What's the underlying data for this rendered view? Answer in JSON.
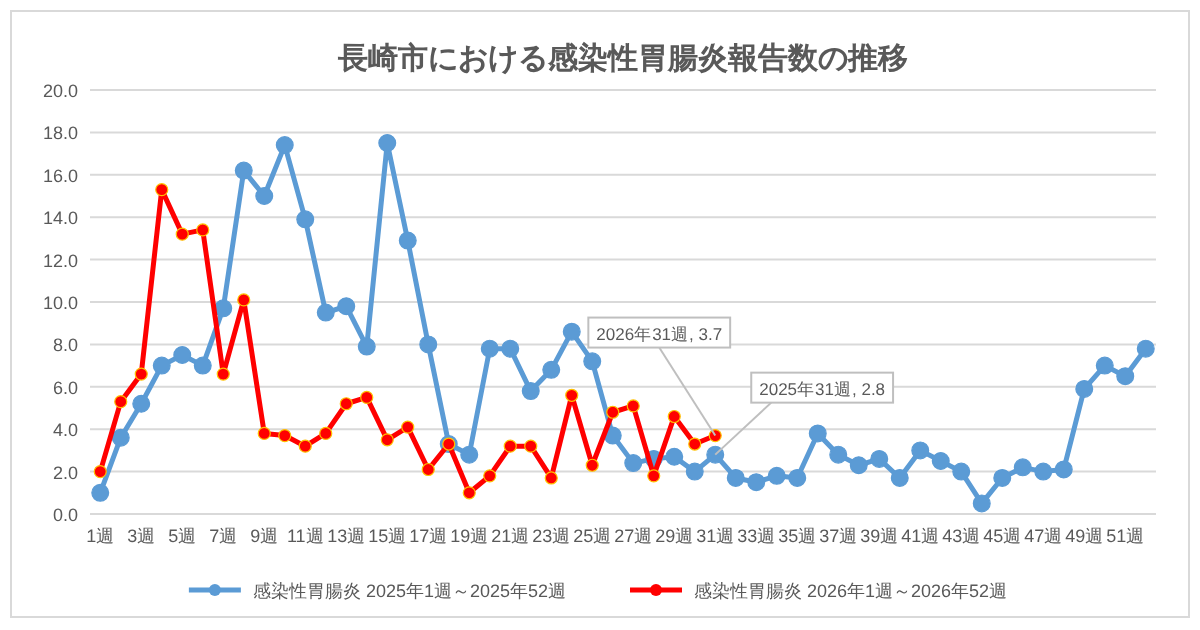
{
  "chart_data": {
    "type": "line",
    "title": "長崎市における感染性胃腸炎報告数の推移",
    "categories": [
      "1週",
      null,
      "3週",
      null,
      "5週",
      null,
      "7週",
      null,
      "9週",
      null,
      "11週",
      null,
      "13週",
      null,
      "15週",
      null,
      "17週",
      null,
      "19週",
      null,
      "21週",
      null,
      "23週",
      null,
      "25週",
      null,
      "27週",
      null,
      "29週",
      null,
      "31週",
      null,
      "33週",
      null,
      "35週",
      null,
      "37週",
      null,
      "39週",
      null,
      "41週",
      null,
      "43週",
      null,
      "45週",
      null,
      "47週",
      null,
      "49週",
      null,
      "51週",
      null
    ],
    "series": [
      {
        "name": "感染性胃腸炎 2025年1週～2025年52週",
        "color": "#5b9bd5",
        "values": [
          1.0,
          3.6,
          5.2,
          7.0,
          7.5,
          7.0,
          9.7,
          16.2,
          15.0,
          17.4,
          13.9,
          9.5,
          9.8,
          7.9,
          17.5,
          12.9,
          8.0,
          3.3,
          2.8,
          7.8,
          7.8,
          5.8,
          6.8,
          8.6,
          7.2,
          3.7,
          2.4,
          2.6,
          2.7,
          2.0,
          2.8,
          1.7,
          1.5,
          1.8,
          1.7,
          3.8,
          2.8,
          2.3,
          2.6,
          1.7,
          3.0,
          2.5,
          2.0,
          0.5,
          1.7,
          2.2,
          2.0,
          2.1,
          5.9,
          7.0,
          6.5,
          7.8
        ]
      },
      {
        "name": "感染性胃腸炎 2026年1週～2026年52週",
        "color": "#ff0000",
        "values": [
          2.0,
          5.3,
          6.6,
          15.3,
          13.2,
          13.4,
          6.6,
          10.1,
          3.8,
          3.7,
          3.2,
          3.8,
          5.2,
          5.5,
          3.5,
          4.1,
          2.1,
          3.3,
          1.0,
          1.8,
          3.2,
          3.2,
          1.7,
          5.6,
          2.3,
          4.8,
          5.1,
          1.8,
          4.6,
          3.3,
          3.7,
          null,
          null,
          null,
          null,
          null,
          null,
          null,
          null,
          null,
          null,
          null,
          null,
          null,
          null,
          null,
          null,
          null,
          null,
          null,
          null,
          null
        ]
      }
    ],
    "ylim": [
      0,
      20
    ],
    "yticks": [
      {
        "value": 0,
        "label": "0.0"
      },
      {
        "value": 2,
        "label": "2.0"
      },
      {
        "value": 4,
        "label": "4.0"
      },
      {
        "value": 6,
        "label": "6.0"
      },
      {
        "value": 8,
        "label": "8.0"
      },
      {
        "value": 10,
        "label": "10.0"
      },
      {
        "value": 12,
        "label": "12.0"
      },
      {
        "value": 14,
        "label": "14.0"
      },
      {
        "value": 16,
        "label": "16.0"
      },
      {
        "value": 18,
        "label": "18.0"
      },
      {
        "value": 20,
        "label": "20.0"
      }
    ],
    "annotations": [
      {
        "text": "2026年31週, 3.7",
        "x": "31週",
        "y": 3.7
      },
      {
        "text": "2025年31週, 2.8",
        "x": "31週",
        "y": 2.8
      }
    ],
    "grid": "y",
    "legend": "bottom",
    "marker": "circle",
    "line_style": "solid"
  }
}
